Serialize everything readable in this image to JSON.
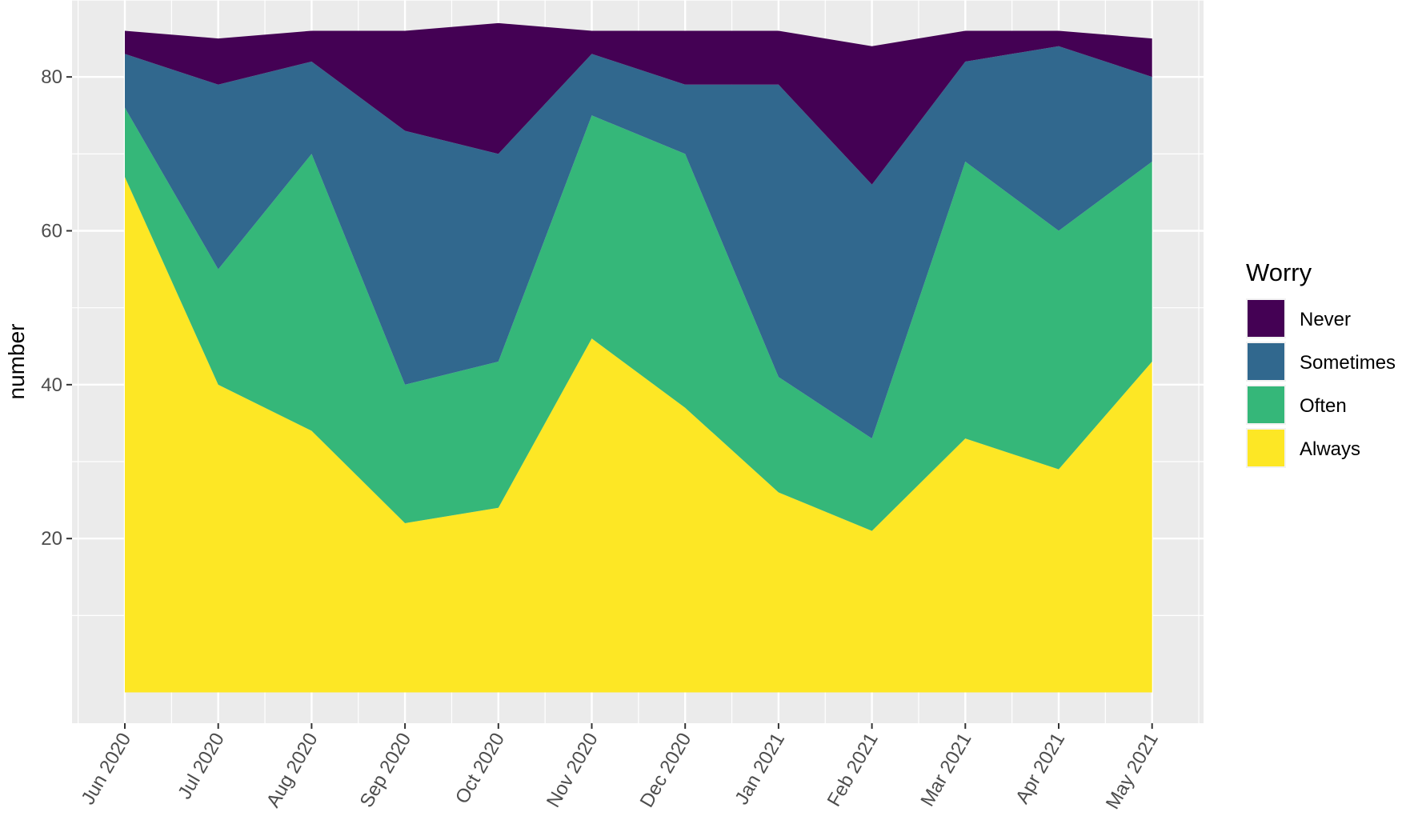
{
  "chart_data": {
    "type": "area",
    "stacked": true,
    "x": [
      "Jun 2020",
      "Jul 2020",
      "Aug 2020",
      "Sep 2020",
      "Oct 2020",
      "Nov 2020",
      "Dec 2020",
      "Jan 2021",
      "Feb 2021",
      "Mar 2021",
      "Apr 2021",
      "May 2021"
    ],
    "ylabel": "number",
    "xlabel": "",
    "ylim": [
      -4,
      90
    ],
    "yticks": [
      20,
      40,
      60,
      80
    ],
    "grid": true,
    "legend": {
      "title": "Worry",
      "position": "right"
    },
    "series": [
      {
        "name": "Never",
        "color": "#440154",
        "values": [
          3,
          6,
          4,
          13,
          17,
          3,
          7,
          7,
          18,
          4,
          2,
          5
        ]
      },
      {
        "name": "Sometimes",
        "color": "#31688e",
        "values": [
          7,
          24,
          12,
          33,
          27,
          8,
          9,
          38,
          33,
          13,
          24,
          11
        ]
      },
      {
        "name": "Often",
        "color": "#35b779",
        "values": [
          9,
          15,
          36,
          18,
          19,
          29,
          33,
          15,
          12,
          36,
          31,
          26
        ]
      },
      {
        "name": "Always",
        "color": "#fde725",
        "values": [
          67,
          40,
          34,
          22,
          24,
          46,
          37,
          26,
          21,
          33,
          29,
          43
        ]
      }
    ]
  }
}
